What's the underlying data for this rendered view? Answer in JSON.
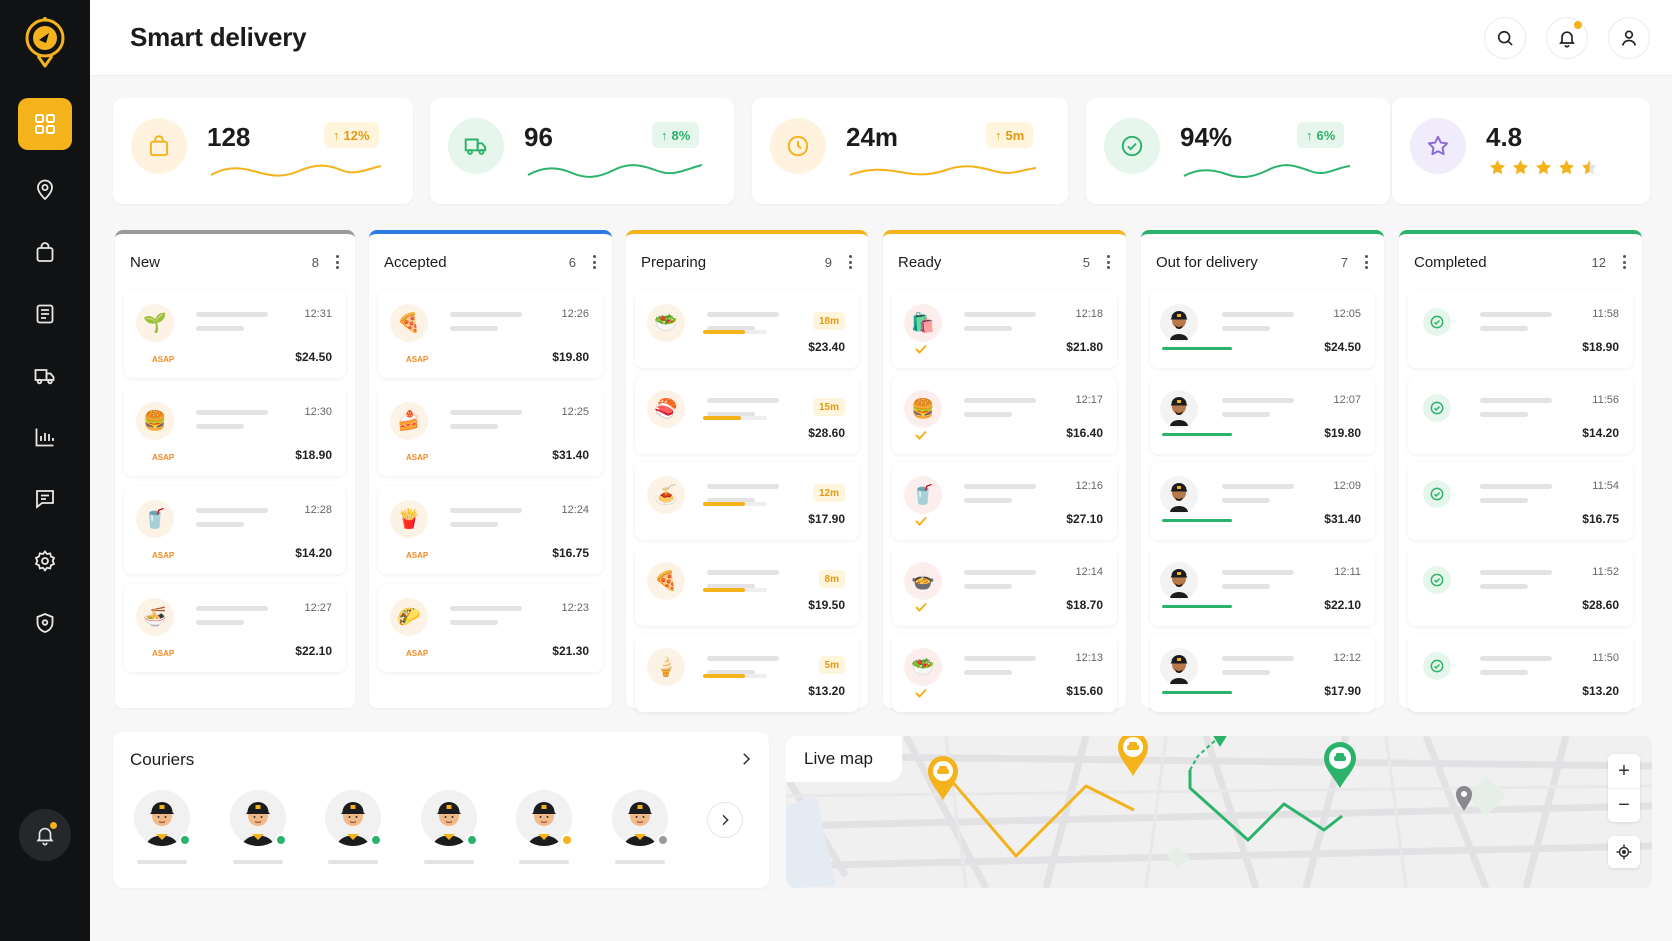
{
  "app": {
    "title": "Smart delivery"
  },
  "colors": {
    "accent": "#f4b21b",
    "green": "#2bb36b",
    "blue": "#2d7be5",
    "grey": "#9a9a9a"
  },
  "sidebar": {
    "items": [
      "dashboard-icon",
      "location-icon",
      "bag-icon",
      "orders-icon",
      "truck-icon",
      "analytics-icon",
      "chat-icon",
      "settings-icon",
      "shield-icon"
    ]
  },
  "stats": [
    {
      "value": "128",
      "change": "12%"
    },
    {
      "value": "96",
      "change": "8%"
    },
    {
      "value": "24m",
      "change": "5m"
    },
    {
      "value": "94%",
      "change": "6%"
    },
    {
      "value": "4.8",
      "rating": 4.5
    }
  ],
  "columns": [
    {
      "title": "New",
      "count": "8",
      "cards": [
        {
          "time": "12:31",
          "price": "$24.50",
          "tag": "ASAP",
          "icon": "🌱"
        },
        {
          "time": "12:30",
          "price": "$18.90",
          "tag": "ASAP",
          "icon": "🍔"
        },
        {
          "time": "12:28",
          "price": "$14.20",
          "tag": "ASAP",
          "icon": "🥤"
        },
        {
          "time": "12:27",
          "price": "$22.10",
          "tag": "ASAP",
          "icon": "🍜"
        }
      ]
    },
    {
      "title": "Accepted",
      "count": "6",
      "cards": [
        {
          "time": "12:26",
          "price": "$19.80",
          "tag": "ASAP",
          "icon": "🍕"
        },
        {
          "time": "12:25",
          "price": "$31.40",
          "tag": "ASAP",
          "icon": "🍰"
        },
        {
          "time": "12:24",
          "price": "$16.75",
          "tag": "ASAP",
          "icon": "🍟"
        },
        {
          "time": "12:23",
          "price": "$21.30",
          "tag": "ASAP",
          "icon": "🌮"
        }
      ]
    },
    {
      "title": "Preparing",
      "count": "9",
      "cards": [
        {
          "time": "18m",
          "price": "$23.40",
          "icon": "🥗",
          "progress": 0.65
        },
        {
          "time": "15m",
          "price": "$28.60",
          "icon": "🍣",
          "progress": 0.6
        },
        {
          "time": "12m",
          "price": "$17.90",
          "icon": "🍝",
          "progress": 0.65
        },
        {
          "time": "8m",
          "price": "$19.50",
          "icon": "🍕",
          "progress": 0.65
        },
        {
          "time": "5m",
          "price": "$13.20",
          "icon": "🍦",
          "progress": 0.65
        }
      ]
    },
    {
      "title": "Ready",
      "count": "5",
      "cards": [
        {
          "time": "12:18",
          "price": "$21.80",
          "icon": "🛍️"
        },
        {
          "time": "12:17",
          "price": "$16.40",
          "icon": "🍔"
        },
        {
          "time": "12:16",
          "price": "$27.10",
          "icon": "🥤"
        },
        {
          "time": "12:14",
          "price": "$18.70",
          "icon": "🍲"
        },
        {
          "time": "12:13",
          "price": "$15.60",
          "icon": "🥗"
        }
      ]
    },
    {
      "title": "Out for delivery",
      "count": "7",
      "cards": [
        {
          "time": "12:05",
          "price": "$24.50"
        },
        {
          "time": "12:07",
          "price": "$19.80"
        },
        {
          "time": "12:09",
          "price": "$31.40"
        },
        {
          "time": "12:11",
          "price": "$22.10"
        },
        {
          "time": "12:12",
          "price": "$17.90"
        }
      ]
    },
    {
      "title": "Completed",
      "count": "12",
      "cards": [
        {
          "time": "11:58",
          "price": "$18.90"
        },
        {
          "time": "11:56",
          "price": "$14.20"
        },
        {
          "time": "11:54",
          "price": "$16.75"
        },
        {
          "time": "11:52",
          "price": "$28.60"
        },
        {
          "time": "11:50",
          "price": "$13.20"
        }
      ]
    }
  ],
  "couriers": {
    "title": "Couriers",
    "status": [
      "online",
      "online",
      "online",
      "online",
      "busy",
      "offline"
    ]
  },
  "map": {
    "title": "Live map",
    "zoom_in": "+",
    "zoom_out": "−"
  }
}
